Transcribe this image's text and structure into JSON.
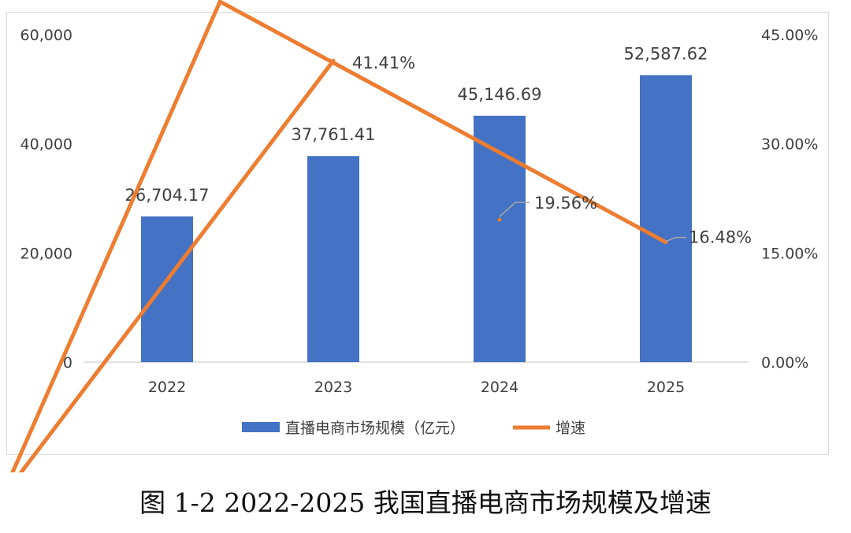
{
  "chart_data": {
    "type": "bar+line",
    "categories": [
      "2022",
      "2023",
      "2024",
      "2025"
    ],
    "series": [
      {
        "name": "直播电商市场规模（亿元）",
        "type": "bar",
        "axis": "left",
        "values": [
          26704.17,
          37761.41,
          45146.69,
          52587.62
        ],
        "labels": [
          "26,704.17",
          "37,761.41",
          "45,146.69",
          "52,587.62"
        ],
        "color": "#4472C4"
      },
      {
        "name": "增速",
        "type": "line",
        "axis": "right",
        "values": [
          null,
          41.41,
          19.56,
          16.48
        ],
        "labels": [
          "",
          "41.41%",
          "19.56%",
          "16.48%"
        ],
        "color": "#ED7D31"
      }
    ],
    "left_axis": {
      "ylim": [
        0,
        60000
      ],
      "ticks": [
        "0",
        "20,000",
        "40,000",
        "60,000"
      ]
    },
    "right_axis": {
      "ylim": [
        0,
        45
      ],
      "ticks": [
        "0.00%",
        "15.00%",
        "30.00%",
        "45.00%"
      ]
    },
    "grid": false,
    "legend": "bottom"
  },
  "caption": "图 1-2 2022-2025 我国直播电商市场规模及增速"
}
